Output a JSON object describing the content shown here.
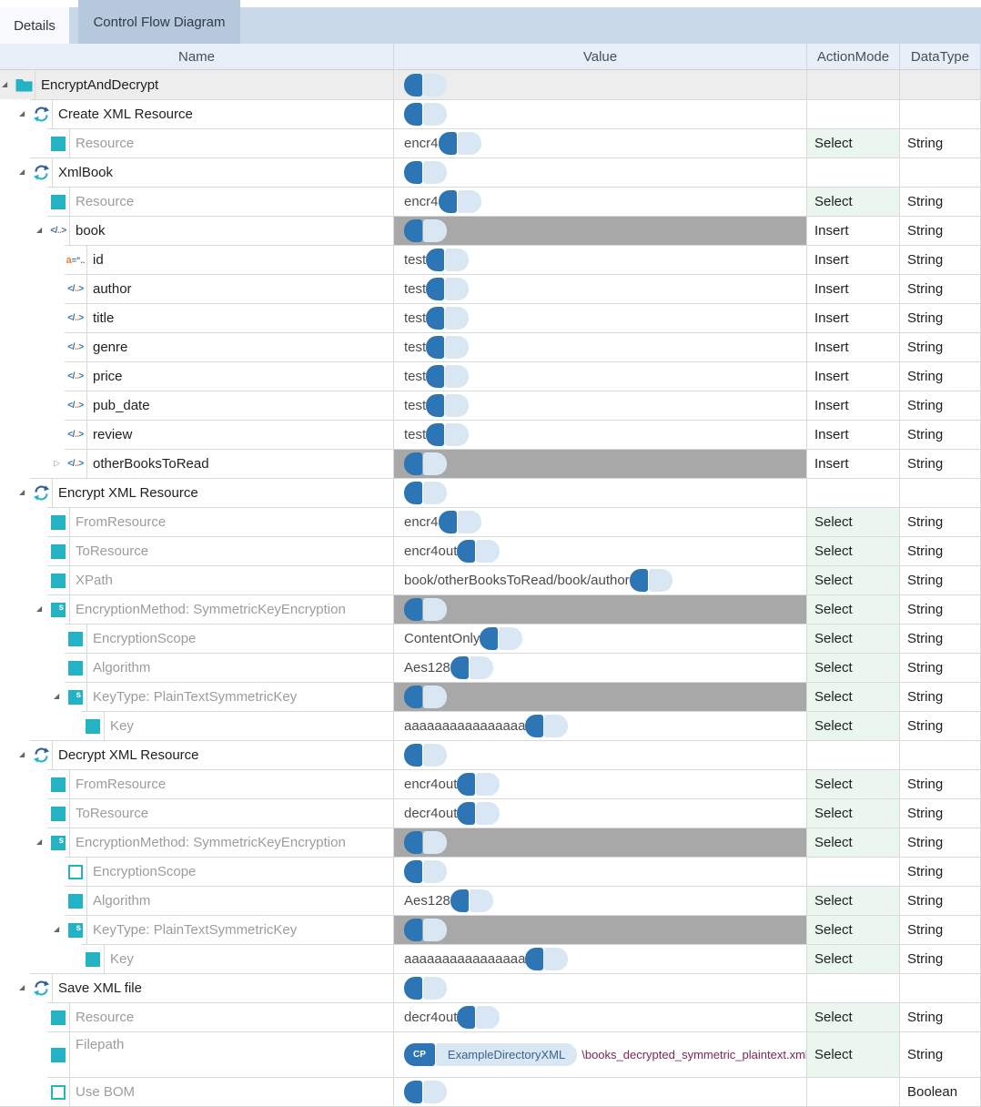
{
  "tabs": [
    {
      "label": "Details",
      "active": true
    },
    {
      "label": "Control Flow Diagram",
      "active": false
    }
  ],
  "columns": {
    "name": "Name",
    "value": "Value",
    "action_mode": "ActionMode",
    "data_type": "DataType"
  },
  "colors": {
    "accent_teal": "#24b3c5",
    "select_green": "#eaf6ee",
    "value_gray_bar": "#a8a8a8",
    "badge_blue": "#2e75b6",
    "token_bg": "#d9e7f5",
    "path_text": "#7c2855",
    "header_bg": "#e7eef7",
    "tab_strip": "#c9d8e9",
    "tab_inactive": "#b5c8dc",
    "root_row_bg": "#ededed"
  },
  "icons": {
    "expander_expanded": "◢",
    "expander_collapsed": "▷",
    "xml_element_open": "</",
    "xml_element_dots": "..",
    "xml_element_close": ">",
    "attribute_a": "a",
    "attribute_rest": "=\"..",
    "struct_glyph": "s"
  },
  "rows": [
    {
      "label": "EncryptAndDecrypt",
      "depth": 0,
      "icon": "folder",
      "expander": "expanded",
      "label_tone": "dark",
      "value": "",
      "value_gray": false,
      "action": "",
      "datatype": "",
      "highlight": true,
      "tall": false
    },
    {
      "label": "Create XML Resource",
      "depth": 1,
      "icon": "refresh",
      "expander": "expanded",
      "label_tone": "dark",
      "value": "",
      "value_gray": false,
      "action": "",
      "datatype": "",
      "highlight": false,
      "tall": false
    },
    {
      "label": "Resource",
      "depth": 2,
      "icon": "square",
      "expander": "none",
      "label_tone": "gray",
      "value": "encr4",
      "value_gray": false,
      "action": "Select",
      "datatype": "String",
      "highlight": false,
      "tall": false
    },
    {
      "label": "XmlBook",
      "depth": 1,
      "icon": "refresh",
      "expander": "expanded",
      "label_tone": "dark",
      "value": "",
      "value_gray": false,
      "action": "",
      "datatype": "",
      "highlight": false,
      "tall": false
    },
    {
      "label": "Resource",
      "depth": 2,
      "icon": "square",
      "expander": "none",
      "label_tone": "gray",
      "value": "encr4",
      "value_gray": false,
      "action": "Select",
      "datatype": "String",
      "highlight": false,
      "tall": false
    },
    {
      "label": "book",
      "depth": 2,
      "icon": "xml_element",
      "expander": "expanded",
      "label_tone": "dark",
      "value": "",
      "value_gray": true,
      "action": "Insert",
      "datatype": "String",
      "highlight": false,
      "tall": false
    },
    {
      "label": "id",
      "depth": 3,
      "icon": "xml_attribute",
      "expander": "none",
      "label_tone": "dark",
      "value": "test",
      "value_gray": false,
      "action": "Insert",
      "datatype": "String",
      "highlight": false,
      "tall": false
    },
    {
      "label": "author",
      "depth": 3,
      "icon": "xml_element",
      "expander": "none",
      "label_tone": "dark",
      "value": "test",
      "value_gray": false,
      "action": "Insert",
      "datatype": "String",
      "highlight": false,
      "tall": false
    },
    {
      "label": "title",
      "depth": 3,
      "icon": "xml_element",
      "expander": "none",
      "label_tone": "dark",
      "value": "test",
      "value_gray": false,
      "action": "Insert",
      "datatype": "String",
      "highlight": false,
      "tall": false
    },
    {
      "label": "genre",
      "depth": 3,
      "icon": "xml_element",
      "expander": "none",
      "label_tone": "dark",
      "value": "test",
      "value_gray": false,
      "action": "Insert",
      "datatype": "String",
      "highlight": false,
      "tall": false
    },
    {
      "label": "price",
      "depth": 3,
      "icon": "xml_element",
      "expander": "none",
      "label_tone": "dark",
      "value": "test",
      "value_gray": false,
      "action": "Insert",
      "datatype": "String",
      "highlight": false,
      "tall": false
    },
    {
      "label": "pub_date",
      "depth": 3,
      "icon": "xml_element",
      "expander": "none",
      "label_tone": "dark",
      "value": "test",
      "value_gray": false,
      "action": "Insert",
      "datatype": "String",
      "highlight": false,
      "tall": false
    },
    {
      "label": "review",
      "depth": 3,
      "icon": "xml_element",
      "expander": "none",
      "label_tone": "dark",
      "value": "test",
      "value_gray": false,
      "action": "Insert",
      "datatype": "String",
      "highlight": false,
      "tall": false
    },
    {
      "label": "otherBooksToRead",
      "depth": 3,
      "icon": "xml_element",
      "expander": "collapsed",
      "label_tone": "dark",
      "value": "",
      "value_gray": true,
      "action": "Insert",
      "datatype": "String",
      "highlight": false,
      "tall": false
    },
    {
      "label": "Encrypt XML Resource",
      "depth": 1,
      "icon": "refresh",
      "expander": "expanded",
      "label_tone": "dark",
      "value": "",
      "value_gray": false,
      "action": "",
      "datatype": "",
      "highlight": false,
      "tall": false
    },
    {
      "label": "FromResource",
      "depth": 2,
      "icon": "square",
      "expander": "none",
      "label_tone": "gray",
      "value": "encr4",
      "value_gray": false,
      "action": "Select",
      "datatype": "String",
      "highlight": false,
      "tall": false
    },
    {
      "label": "ToResource",
      "depth": 2,
      "icon": "square",
      "expander": "none",
      "label_tone": "gray",
      "value": "encr4out",
      "value_gray": false,
      "action": "Select",
      "datatype": "String",
      "highlight": false,
      "tall": false
    },
    {
      "label": "XPath",
      "depth": 2,
      "icon": "square",
      "expander": "none",
      "label_tone": "gray",
      "value": "book/otherBooksToRead/book/author",
      "value_gray": false,
      "action": "Select",
      "datatype": "String",
      "highlight": false,
      "tall": false
    },
    {
      "label": "EncryptionMethod: SymmetricKeyEncryption",
      "depth": 2,
      "icon": "struct",
      "expander": "expanded",
      "label_tone": "gray",
      "value": "",
      "value_gray": true,
      "action": "Select",
      "datatype": "String",
      "highlight": false,
      "tall": false
    },
    {
      "label": "EncryptionScope",
      "depth": 3,
      "icon": "square",
      "expander": "none",
      "label_tone": "gray",
      "value": "ContentOnly",
      "value_gray": false,
      "action": "Select",
      "datatype": "String",
      "highlight": false,
      "tall": false
    },
    {
      "label": "Algorithm",
      "depth": 3,
      "icon": "square",
      "expander": "none",
      "label_tone": "gray",
      "value": "Aes128",
      "value_gray": false,
      "action": "Select",
      "datatype": "String",
      "highlight": false,
      "tall": false
    },
    {
      "label": "KeyType: PlainTextSymmetricKey",
      "depth": 3,
      "icon": "struct",
      "expander": "expanded",
      "label_tone": "gray",
      "value": "",
      "value_gray": true,
      "action": "Select",
      "datatype": "String",
      "highlight": false,
      "tall": false
    },
    {
      "label": "Key",
      "depth": 4,
      "icon": "square",
      "expander": "none",
      "label_tone": "gray",
      "value": "aaaaaaaaaaaaaaaa",
      "value_gray": false,
      "action": "Select",
      "datatype": "String",
      "highlight": false,
      "tall": false
    },
    {
      "label": "Decrypt XML Resource",
      "depth": 1,
      "icon": "refresh",
      "expander": "expanded",
      "label_tone": "dark",
      "value": "",
      "value_gray": false,
      "action": "",
      "datatype": "",
      "highlight": false,
      "tall": false
    },
    {
      "label": "FromResource",
      "depth": 2,
      "icon": "square",
      "expander": "none",
      "label_tone": "gray",
      "value": "encr4out",
      "value_gray": false,
      "action": "Select",
      "datatype": "String",
      "highlight": false,
      "tall": false
    },
    {
      "label": "ToResource",
      "depth": 2,
      "icon": "square",
      "expander": "none",
      "label_tone": "gray",
      "value": "decr4out",
      "value_gray": false,
      "action": "Select",
      "datatype": "String",
      "highlight": false,
      "tall": false
    },
    {
      "label": "EncryptionMethod: SymmetricKeyEncryption",
      "depth": 2,
      "icon": "struct",
      "expander": "expanded",
      "label_tone": "gray",
      "value": "",
      "value_gray": true,
      "action": "Select",
      "datatype": "String",
      "highlight": false,
      "tall": false
    },
    {
      "label": "EncryptionScope",
      "depth": 3,
      "icon": "square_hollow",
      "expander": "none",
      "label_tone": "gray",
      "value": "",
      "value_gray": false,
      "action": "",
      "datatype": "String",
      "highlight": false,
      "tall": false
    },
    {
      "label": "Algorithm",
      "depth": 3,
      "icon": "square",
      "expander": "none",
      "label_tone": "gray",
      "value": "Aes128",
      "value_gray": false,
      "action": "Select",
      "datatype": "String",
      "highlight": false,
      "tall": false
    },
    {
      "label": "KeyType: PlainTextSymmetricKey",
      "depth": 3,
      "icon": "struct",
      "expander": "expanded",
      "label_tone": "gray",
      "value": "",
      "value_gray": true,
      "action": "Select",
      "datatype": "String",
      "highlight": false,
      "tall": false
    },
    {
      "label": "Key",
      "depth": 4,
      "icon": "square",
      "expander": "none",
      "label_tone": "gray",
      "value": "aaaaaaaaaaaaaaaa",
      "value_gray": false,
      "action": "Select",
      "datatype": "String",
      "highlight": false,
      "tall": false
    },
    {
      "label": "Save XML file",
      "depth": 1,
      "icon": "refresh",
      "expander": "expanded",
      "label_tone": "dark",
      "value": "",
      "value_gray": false,
      "action": "",
      "datatype": "",
      "highlight": false,
      "tall": false
    },
    {
      "label": "Resource",
      "depth": 2,
      "icon": "square",
      "expander": "none",
      "label_tone": "gray",
      "value": "decr4out",
      "value_gray": false,
      "action": "Select",
      "datatype": "String",
      "highlight": false,
      "tall": false
    },
    {
      "label": "Filepath",
      "depth": 2,
      "icon": "square",
      "expander": "none",
      "label_tone": "gray",
      "value": "",
      "value_gray": false,
      "value_token": {
        "badge": "CP",
        "name": "ExampleDirectoryXML",
        "path": "\\books_decrypted_symmetric_plaintext.xml"
      },
      "action": "Select",
      "datatype": "String",
      "highlight": false,
      "tall": true
    },
    {
      "label": "Use BOM",
      "depth": 2,
      "icon": "square_hollow",
      "expander": "none",
      "label_tone": "gray",
      "value": "",
      "value_gray": false,
      "action": "",
      "datatype": "Boolean",
      "highlight": false,
      "tall": false
    }
  ]
}
